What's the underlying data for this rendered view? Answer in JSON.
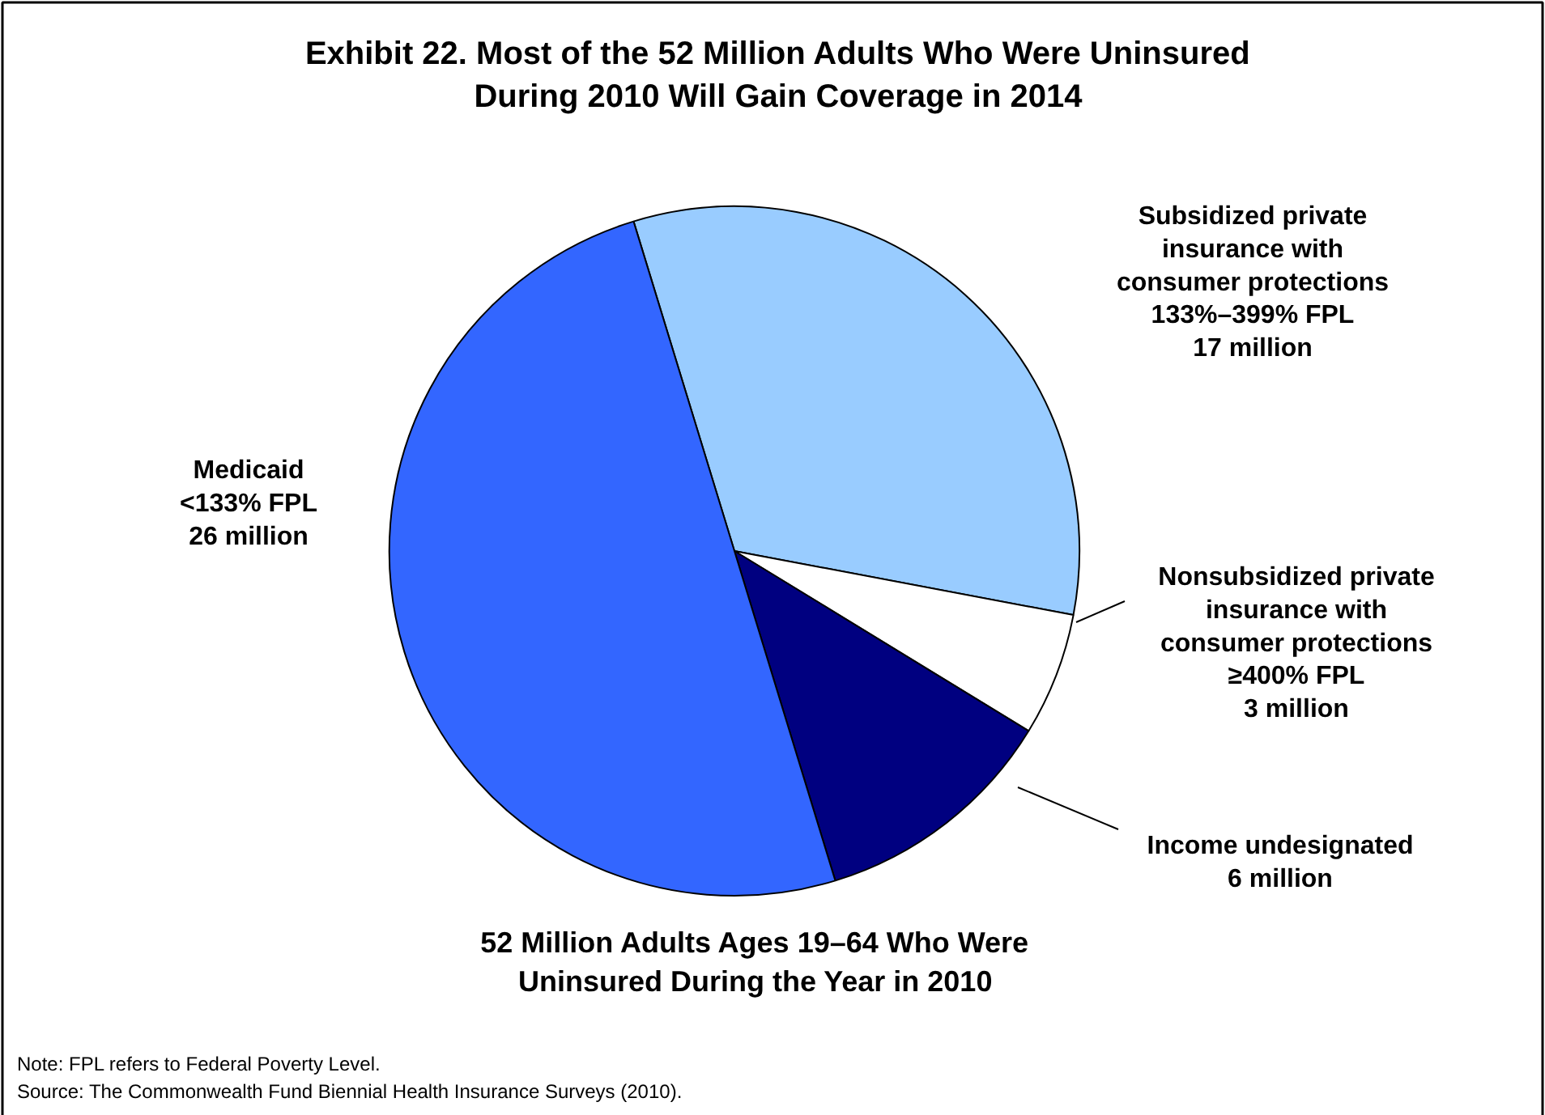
{
  "chart_data": {
    "type": "pie",
    "title": "Exhibit 22. Most of the 52 Million Adults Who Were Uninsured\nDuring 2010 Will Gain Coverage in 2014",
    "subtitle": "52 Million Adults Ages 19–64 Who Were\nUninsured During the Year in 2010",
    "categories": [
      "Subsidized private\ninsurance with\nconsumer protections\n133%–399% FPL",
      "Nonsubsidized private\ninsurance with\nconsumer protections\n≥400% FPL",
      "Income undesignated",
      "Medicaid\n<133% FPL"
    ],
    "values": [
      17,
      3,
      6,
      26
    ],
    "value_labels": [
      "17 million",
      "3 million",
      "6 million",
      "26 million"
    ],
    "colors": [
      "#99ccff",
      "#ffffff",
      "#000080",
      "#3366ff"
    ],
    "annotations": [
      "Note: FPL refers to Federal Poverty Level.",
      "Source: The Commonwealth Fund Biennial Health Insurance Surveys (2010)."
    ]
  }
}
